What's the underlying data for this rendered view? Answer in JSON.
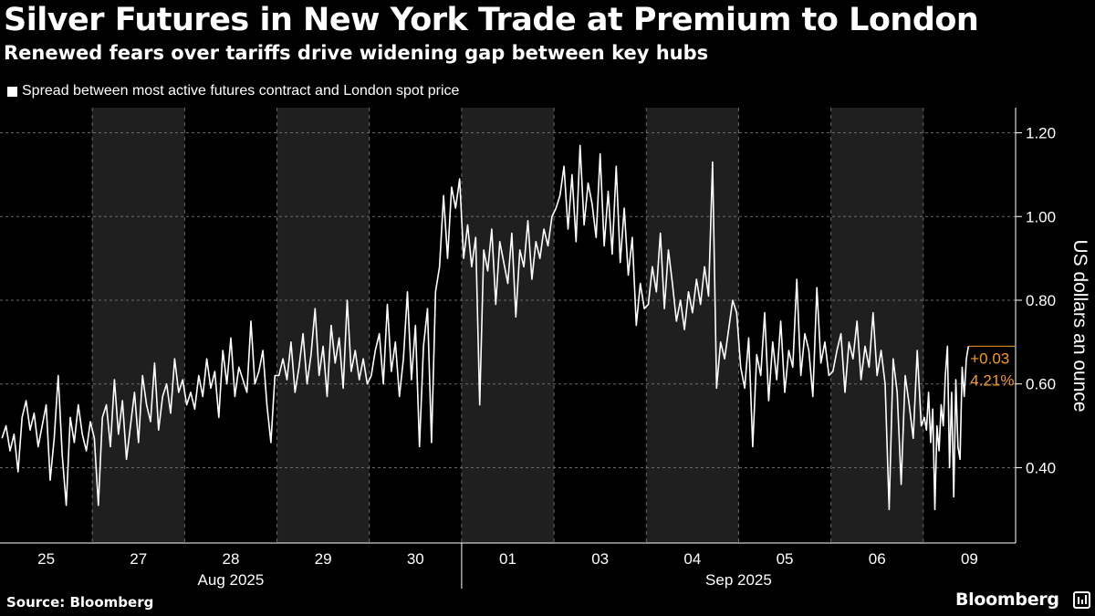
{
  "title": "Silver Futures in New York Trade at Premium to London",
  "subtitle": "Renewed fears over tariffs drive widening gap between key hubs",
  "source": "Source: Bloomberg",
  "brand": "Bloomberg",
  "colors": {
    "background": "#000000",
    "line": "#ffffff",
    "shade": "#1f1f1f",
    "annotation": "#f39a2e"
  },
  "chart_data": {
    "type": "line",
    "title": "Silver Futures in New York Trade at Premium to London",
    "subtitle": "Renewed fears over tariffs drive widening gap between key hubs",
    "ylabel": "US dollars an ounce",
    "yticks": [
      "0.40",
      "0.60",
      "0.80",
      "1.00",
      "1.20"
    ],
    "ylim": [
      0.22,
      1.26
    ],
    "grid": true,
    "legend_position": "top-left",
    "x_day_labels": [
      "25",
      "27",
      "28",
      "29",
      "30",
      "01",
      "03",
      "04",
      "05",
      "06",
      "09"
    ],
    "x_month_labels": [
      "Aug 2025",
      "Sep 2025"
    ],
    "shaded_days": [
      "27",
      "29",
      "01",
      "04",
      "06"
    ],
    "series": [
      {
        "name": "Spread between most active futures contract and London spot price",
        "days": [
          {
            "day": "25",
            "values": [
              0.47,
              0.5,
              0.44,
              0.48,
              0.39,
              0.52,
              0.56,
              0.49,
              0.53,
              0.45,
              0.5,
              0.55,
              0.37,
              0.47,
              0.62,
              0.43,
              0.31,
              0.52,
              0.46,
              0.55,
              0.48,
              0.44,
              0.51
            ]
          },
          {
            "day": "27",
            "values": [
              0.47,
              0.31,
              0.52,
              0.55,
              0.45,
              0.61,
              0.48,
              0.56,
              0.42,
              0.5,
              0.58,
              0.46,
              0.62,
              0.55,
              0.51,
              0.65,
              0.49,
              0.57,
              0.6,
              0.53,
              0.66,
              0.58,
              0.61
            ]
          },
          {
            "day": "28",
            "values": [
              0.55,
              0.58,
              0.54,
              0.62,
              0.57,
              0.66,
              0.59,
              0.63,
              0.52,
              0.68,
              0.6,
              0.71,
              0.57,
              0.64,
              0.61,
              0.58,
              0.75,
              0.6,
              0.63,
              0.68,
              0.55,
              0.46,
              0.62
            ]
          },
          {
            "day": "29",
            "values": [
              0.62,
              0.66,
              0.61,
              0.7,
              0.58,
              0.64,
              0.72,
              0.6,
              0.67,
              0.78,
              0.62,
              0.69,
              0.57,
              0.74,
              0.65,
              0.71,
              0.59,
              0.8,
              0.63,
              0.68,
              0.61,
              0.66,
              0.6
            ]
          },
          {
            "day": "30",
            "values": [
              0.62,
              0.68,
              0.72,
              0.6,
              0.79,
              0.63,
              0.7,
              0.57,
              0.66,
              0.82,
              0.61,
              0.74,
              0.45,
              0.69,
              0.78,
              0.46,
              0.82,
              0.88,
              1.05,
              0.9,
              1.07,
              1.02,
              1.09
            ]
          },
          {
            "day": "01",
            "values": [
              0.9,
              0.98,
              0.88,
              0.95,
              0.55,
              0.92,
              0.87,
              0.97,
              0.79,
              0.94,
              0.89,
              0.84,
              0.96,
              0.76,
              0.92,
              0.88,
              0.99,
              0.85,
              0.94,
              0.9,
              0.97,
              0.93,
              1.0
            ]
          },
          {
            "day": "03",
            "values": [
              1.02,
              1.05,
              1.12,
              0.97,
              1.1,
              0.94,
              1.17,
              0.98,
              1.08,
              1.03,
              0.95,
              1.15,
              0.93,
              1.06,
              0.91,
              1.12,
              0.89,
              1.02,
              0.86,
              0.95,
              0.74,
              0.84,
              0.78
            ]
          },
          {
            "day": "04",
            "values": [
              0.79,
              0.88,
              0.82,
              0.96,
              0.78,
              0.92,
              0.84,
              0.75,
              0.8,
              0.73,
              0.82,
              0.77,
              0.85,
              0.79,
              0.88,
              0.81,
              1.13,
              0.59,
              0.7,
              0.66,
              0.73,
              0.8,
              0.77
            ]
          },
          {
            "day": "05",
            "values": [
              0.64,
              0.59,
              0.71,
              0.45,
              0.67,
              0.62,
              0.77,
              0.56,
              0.7,
              0.61,
              0.75,
              0.58,
              0.68,
              0.64,
              0.85,
              0.62,
              0.72,
              0.68,
              0.57,
              0.83,
              0.65,
              0.7,
              0.62
            ]
          },
          {
            "day": "06",
            "values": [
              0.63,
              0.68,
              0.72,
              0.58,
              0.7,
              0.66,
              0.75,
              0.61,
              0.69,
              0.64,
              0.77,
              0.62,
              0.68,
              0.6,
              0.3,
              0.66,
              0.58,
              0.36,
              0.62,
              0.55,
              0.47,
              0.68,
              0.5
            ]
          },
          {
            "day": "09",
            "values": [
              0.52,
              0.49,
              0.58,
              0.46,
              0.54,
              0.3,
              0.5,
              0.44,
              0.55,
              0.5,
              0.62,
              0.69,
              0.4,
              0.58,
              0.33,
              0.61,
              0.45,
              0.42,
              0.64,
              0.57,
              0.66,
              0.69
            ]
          }
        ]
      }
    ],
    "annotation": {
      "change": "+0.03",
      "percent": "4.21%",
      "value": 0.69
    }
  }
}
